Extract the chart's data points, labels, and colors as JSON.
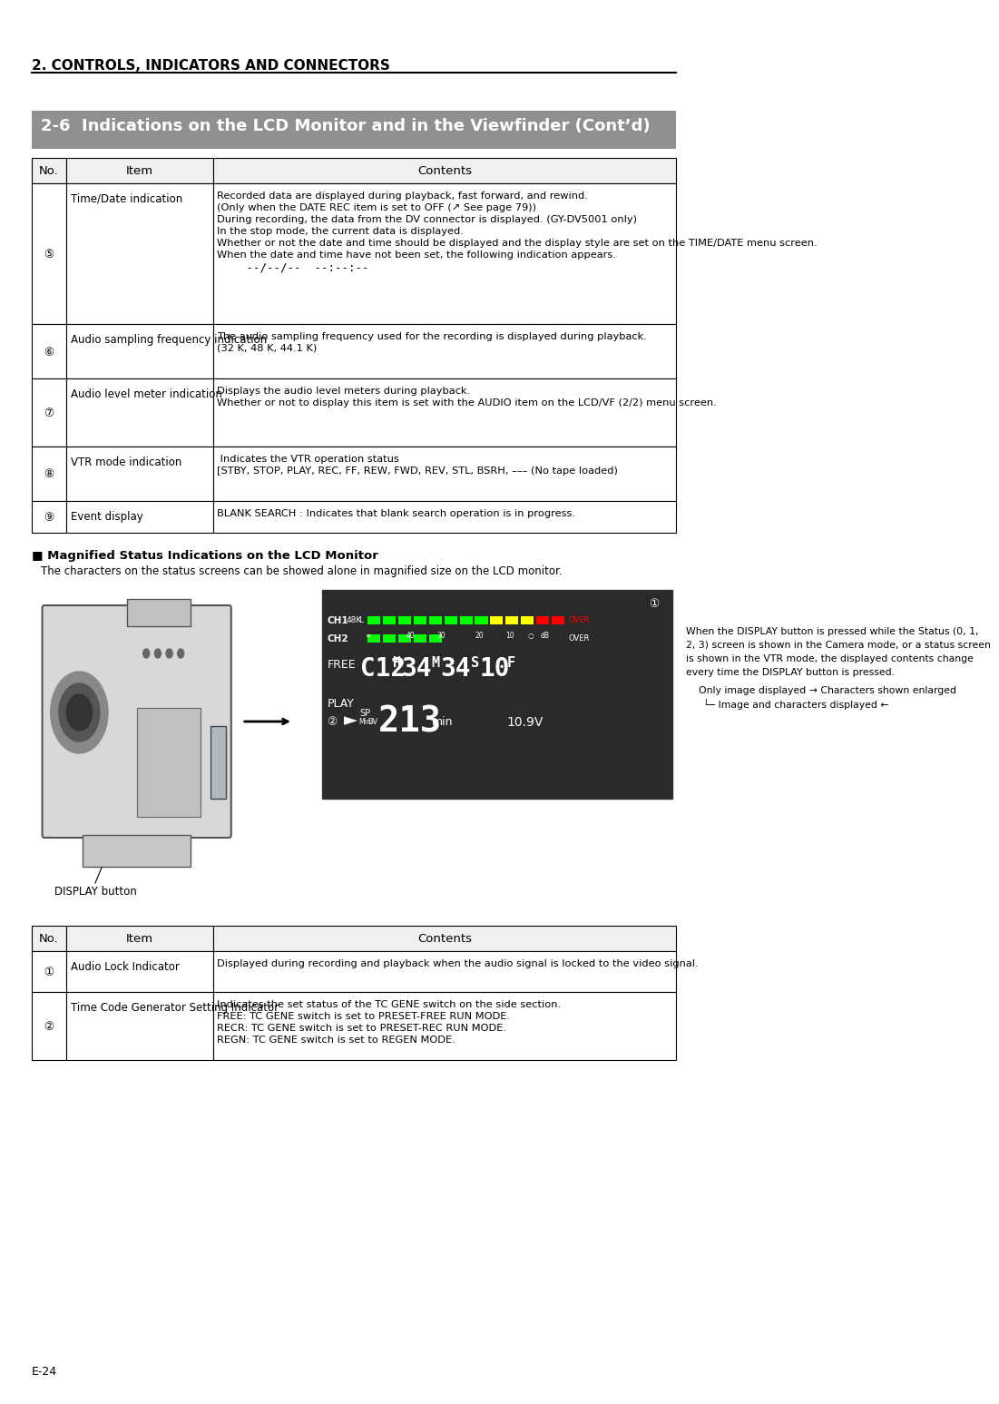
{
  "page_bg": "#ffffff",
  "top_heading": "2. CONTROLS, INDICATORS AND CONNECTORS",
  "section_heading": "2-6  Indications on the LCD Monitor and in the Viewfinder (Cont’d)",
  "section_heading_bg": "#a0a0a0",
  "section_heading_color": "#ffffff",
  "table1_headers": [
    "No.",
    "Item",
    "Contents"
  ],
  "table1_rows": [
    {
      "no": "⑤",
      "item": "Time/Date indication",
      "contents": "Recorded data are displayed during playback, fast forward, and rewind.\n(Only when the DATE REC item is set to OFF (↗ See page 79))\nDuring recording, the data from the DV connector is displayed. (GY-DV5001 only)\nIn the stop mode, the current data is displayed.\nWhether or not the date and time should be displayed and the display style are set on the TIME/DATE menu screen.\nWhen the date and time have not been set, the following indication appears.\n   --/--/--  --:--:--"
    },
    {
      "no": "⑥",
      "item": "Audio sampling frequency indication",
      "contents": "The audio sampling frequency used for the recording is displayed during playback.\n(32 K, 48 K, 44.1 K)"
    },
    {
      "no": "⑦",
      "item": "Audio level meter indication",
      "contents": "Displays the audio level meters during playback.\nWhether or not to display this item is set with the AUDIO item on the LCD/VF (2/2) menu screen."
    },
    {
      "no": "⑧",
      "item": "VTR mode indication",
      "contents": " Indicates the VTR operation status\n[STBY, STOP, PLAY, REC, FF, REW, FWD, REV, STL, BSRH, ––– (No tape loaded)"
    },
    {
      "no": "⑨",
      "item": "Event display",
      "contents": "BLANK SEARCH : Indicates that blank search operation is in progress."
    }
  ],
  "magnified_heading": "■ Magnified Status Indications on the LCD Monitor",
  "magnified_desc": "The characters on the status screens can be showed alone in magnified size on the LCD monitor.",
  "display_button_label": "DISPLAY button",
  "arrow_text_lines": [
    "When the DISPLAY button is pressed while the Status (0, 1,",
    "2, 3) screen is shown in the Camera mode, or a status screen",
    "is shown in the VTR mode, the displayed contents change",
    "every time the DISPLAY button is pressed.",
    "Only image displayed → Characters shown enlarged",
    "└─ Image and characters displayed ←"
  ],
  "lcd_display": {
    "ch1_label": "CH1",
    "ch2_label": "CH2",
    "freq_label": "48K",
    "level_label": "L",
    "bars_label": "∞  40  30    20    10    ○  dB",
    "over_label": "OVER",
    "free_label": "FREE",
    "tc_value": "C12H34M34S10F",
    "play_label": "PLAY",
    "sp_label": "SP",
    "mini_dv": "MiniDV",
    "counter": "213",
    "min_label": "min",
    "voltage": "10.9V",
    "play_icon": "►",
    "circle1": "①",
    "circle2": "②"
  },
  "table2_headers": [
    "No.",
    "Item",
    "Contents"
  ],
  "table2_rows": [
    {
      "no": "①",
      "item": "Audio Lock Indicator",
      "contents": "Displayed during recording and playback when the audio signal is locked to the video signal."
    },
    {
      "no": "②",
      "item": "Time Code Generator Setting Indicator",
      "contents": "Indicates the set status of the TC GENE switch on the side section.\nFREE: TC GENE switch is set to PRESET-FREE RUN MODE.\nRECR: TC GENE switch is set to PRESET-REC RUN MODE.\nREGN: TC GENE switch is set to REGEN MODE."
    }
  ],
  "footer": "E-24"
}
